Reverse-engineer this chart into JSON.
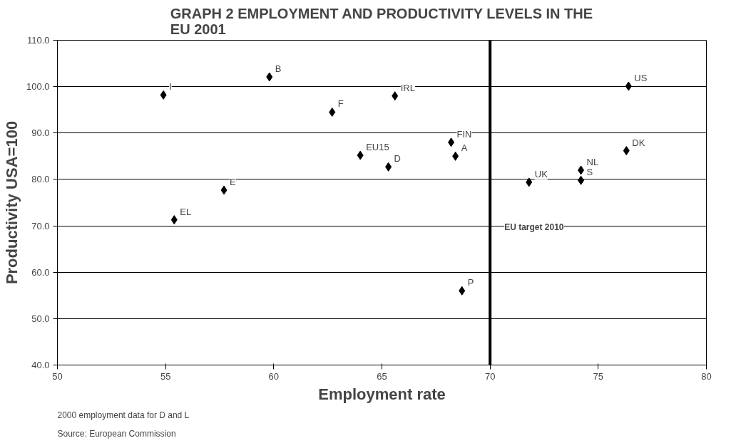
{
  "chart_data": {
    "type": "scatter",
    "title": "GRAPH 2 EMPLOYMENT AND PRODUCTIVITY LEVELS IN THE\nEU 2001",
    "xlabel": "Employment rate",
    "ylabel": "Productivity USA=100",
    "x": [
      54.9,
      59.8,
      62.7,
      65.6,
      64.0,
      65.3,
      68.2,
      68.4,
      57.7,
      55.4,
      68.7,
      71.8,
      74.2,
      74.2,
      76.3,
      76.4
    ],
    "values": [
      98.2,
      102.1,
      94.5,
      98.0,
      85.2,
      82.7,
      88.0,
      85.0,
      77.7,
      71.3,
      56.0,
      79.4,
      82.0,
      79.8,
      86.2,
      100.1
    ],
    "color": "#000000",
    "marker": "diamond",
    "xlim": [
      50,
      80
    ],
    "xticks": [
      50,
      55,
      60,
      65,
      70,
      75,
      80
    ],
    "ylim": [
      40,
      110
    ],
    "yticks": [
      {
        "value": 40,
        "label": "40.0"
      },
      {
        "value": 50,
        "label": "50.0"
      },
      {
        "value": 60,
        "label": "60.0"
      },
      {
        "value": 70,
        "label": "70.0"
      },
      {
        "value": 80,
        "label": "80.0"
      },
      {
        "value": 90,
        "label": "90.0"
      },
      {
        "value": 100,
        "label": "100.0"
      },
      {
        "value": 110,
        "label": "110.0"
      }
    ],
    "grid": "y",
    "ref_lines": [
      {
        "axis": "x",
        "value": 70,
        "label": "EU target 2010"
      }
    ],
    "annotations": [
      {
        "text": "I",
        "x": 54.9,
        "y": 98.2
      },
      {
        "text": "B",
        "x": 59.8,
        "y": 102.1
      },
      {
        "text": "F",
        "x": 62.7,
        "y": 94.5
      },
      {
        "text": "IRL",
        "x": 65.6,
        "y": 98.0
      },
      {
        "text": "EU15",
        "x": 64.0,
        "y": 85.2
      },
      {
        "text": "D",
        "x": 65.3,
        "y": 82.7
      },
      {
        "text": "FIN",
        "x": 68.2,
        "y": 88.0
      },
      {
        "text": "A",
        "x": 68.4,
        "y": 85.0
      },
      {
        "text": "E",
        "x": 57.7,
        "y": 77.7
      },
      {
        "text": "EL",
        "x": 55.4,
        "y": 71.3
      },
      {
        "text": "P",
        "x": 68.7,
        "y": 56.0
      },
      {
        "text": "UK",
        "x": 71.8,
        "y": 79.4
      },
      {
        "text": "NL",
        "x": 74.2,
        "y": 82.0
      },
      {
        "text": "S",
        "x": 74.2,
        "y": 79.8
      },
      {
        "text": "DK",
        "x": 76.3,
        "y": 86.2
      },
      {
        "text": "US",
        "x": 76.4,
        "y": 100.1
      },
      "2000 employment data for D and L",
      "Source: European Commission"
    ]
  }
}
